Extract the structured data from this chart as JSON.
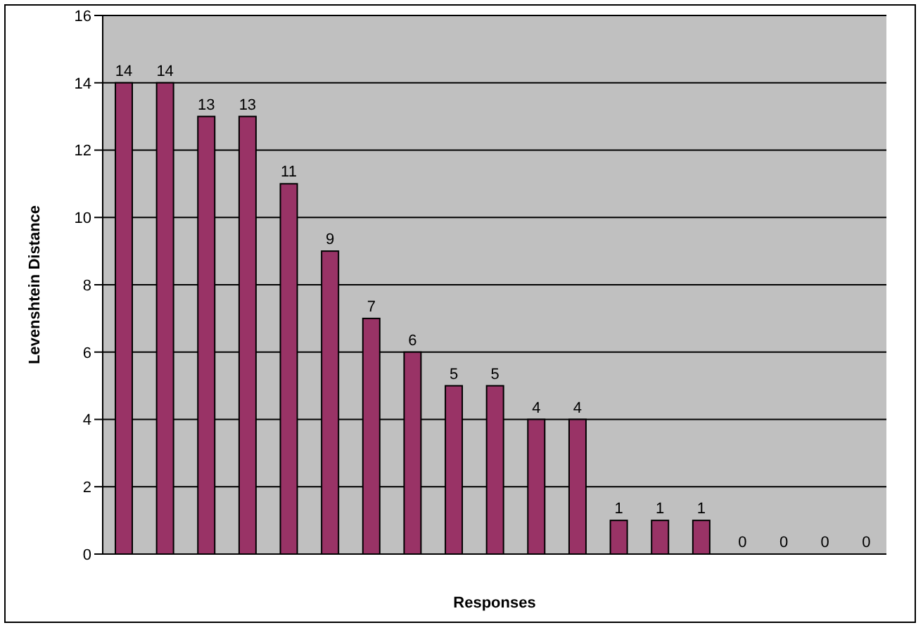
{
  "chart_data": {
    "type": "bar",
    "xlabel": "Responses",
    "ylabel": "Levenshtein Distance",
    "categories": [
      null,
      null,
      null,
      null,
      null,
      null,
      null,
      null,
      null,
      null,
      null,
      null,
      null,
      null,
      null,
      null,
      null,
      null,
      null
    ],
    "values": [
      14,
      14,
      13,
      13,
      11,
      9,
      7,
      6,
      5,
      5,
      4,
      4,
      1,
      1,
      1,
      0,
      0,
      0,
      0
    ],
    "color": "#993366",
    "ylim": [
      0,
      16
    ],
    "yticks": [
      0,
      2,
      4,
      6,
      8,
      10,
      12,
      14,
      16
    ],
    "grid": "y",
    "data_labels": true
  }
}
